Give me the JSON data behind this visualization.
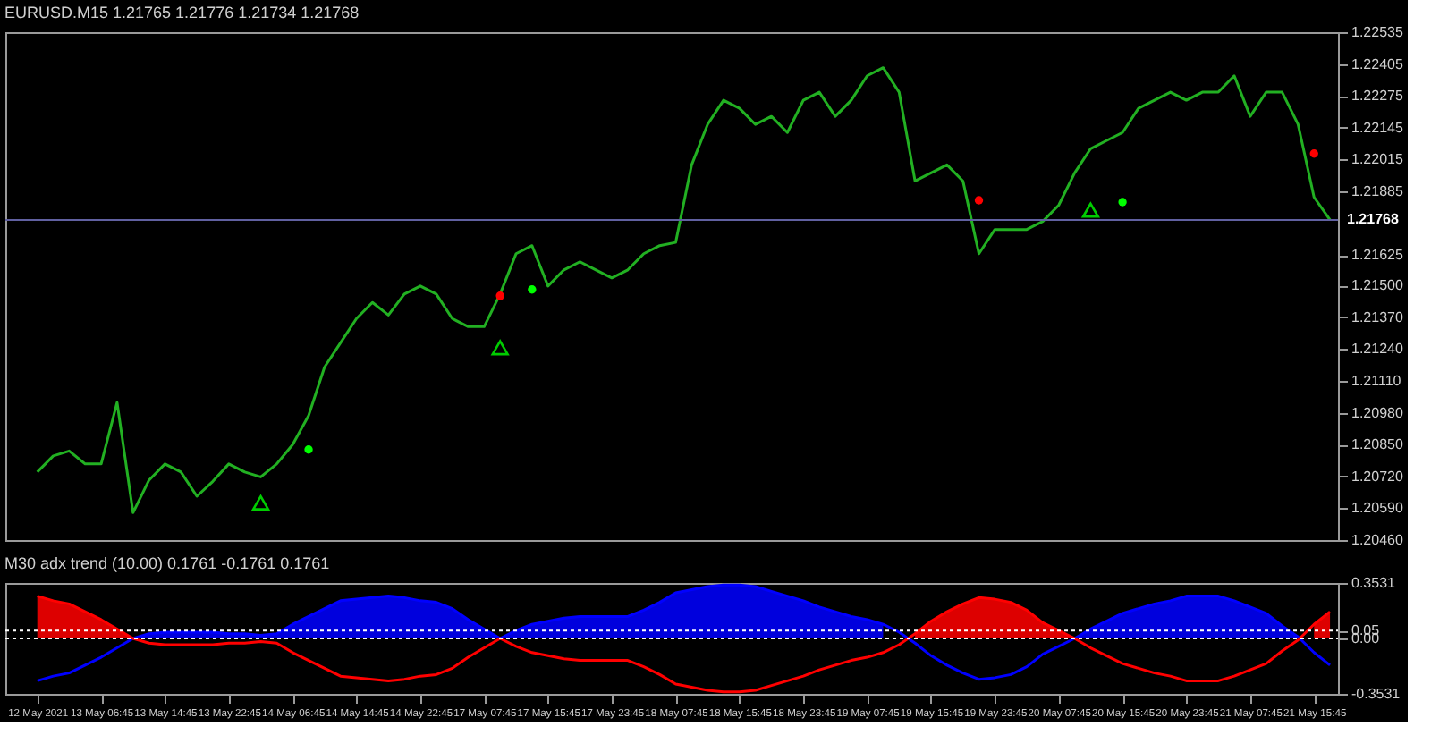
{
  "chart_data": [
    {
      "type": "line",
      "title": "EURUSD.M15  1.21765 1.21776 1.21734 1.21768",
      "categories": [
        null,
        null,
        null,
        null,
        null,
        null,
        null,
        null,
        null,
        null,
        null,
        null,
        null,
        null,
        null,
        null,
        null,
        null,
        null,
        null,
        null,
        null,
        null,
        null,
        null,
        null,
        null,
        null,
        null,
        null,
        null,
        null,
        null,
        null,
        null,
        null,
        null,
        null,
        null,
        null,
        null,
        null,
        null,
        null,
        null,
        null,
        null,
        null,
        null,
        null,
        null,
        null,
        null,
        null,
        null,
        null,
        null,
        null,
        null,
        null,
        null,
        null,
        null,
        null,
        null,
        null,
        null,
        null,
        null,
        null,
        null,
        null,
        null,
        null,
        null,
        null,
        null,
        null,
        null,
        null,
        null,
        null
      ],
      "series": [
        {
          "color": "#22b022",
          "values": [
            1.20738,
            1.20804,
            1.20824,
            1.20771,
            1.20771,
            1.21022,
            1.20572,
            1.20705,
            1.20771,
            1.20738,
            1.20639,
            1.207,
            1.20771,
            1.20738,
            1.20718,
            1.20771,
            1.2085,
            1.20969,
            1.21167,
            1.21266,
            1.21365,
            1.21431,
            1.21379,
            1.21465,
            1.21498,
            1.21465,
            1.21365,
            1.21332,
            1.21332,
            1.21465,
            1.2163,
            1.21663,
            1.21498,
            1.21564,
            1.21597,
            1.21564,
            1.21531,
            1.21564,
            1.2163,
            1.21663,
            1.21676,
            1.21993,
            1.22158,
            1.22257,
            1.22224,
            1.22158,
            1.22191,
            1.22125,
            1.22257,
            1.2229,
            1.22191,
            1.22257,
            1.22357,
            1.2239,
            1.2229,
            1.21927,
            1.2196,
            1.21993,
            1.21927,
            1.2163,
            1.21729,
            1.21729,
            1.21729,
            1.21762,
            1.21828,
            1.2196,
            1.22059,
            1.22092,
            1.22125,
            1.22224,
            1.22257,
            1.2229,
            1.22257,
            1.2229,
            1.2229,
            1.22357,
            1.22191,
            1.2229,
            1.2229,
            1.22158,
            1.21861,
            1.21768
          ]
        },
        {
          "type": "scatter",
          "marker": "circle",
          "color": "#00ff00",
          "values": [
            null,
            null,
            null,
            null,
            null,
            null,
            null,
            null,
            null,
            null,
            null,
            null,
            null,
            null,
            null,
            null,
            null,
            1.2083,
            null,
            null,
            null,
            null,
            null,
            null,
            null,
            null,
            null,
            null,
            null,
            null,
            null,
            1.21484,
            null,
            null,
            null,
            null,
            null,
            null,
            null,
            null,
            null,
            null,
            null,
            null,
            null,
            null,
            null,
            null,
            null,
            null,
            null,
            null,
            null,
            null,
            null,
            null,
            null,
            null,
            null,
            null,
            null,
            null,
            null,
            null,
            null,
            null,
            null,
            null,
            1.21841,
            null,
            null,
            null,
            null,
            null,
            null,
            null,
            null,
            null,
            null,
            null,
            null,
            null
          ]
        },
        {
          "type": "scatter",
          "marker": "circle",
          "color": "#ff0000",
          "values": [
            null,
            null,
            null,
            null,
            null,
            null,
            null,
            null,
            null,
            null,
            null,
            null,
            null,
            null,
            null,
            null,
            null,
            null,
            null,
            null,
            null,
            null,
            null,
            null,
            null,
            null,
            null,
            null,
            null,
            1.21458,
            null,
            null,
            null,
            null,
            null,
            null,
            null,
            null,
            null,
            null,
            null,
            null,
            null,
            null,
            null,
            null,
            null,
            null,
            null,
            null,
            null,
            null,
            null,
            null,
            null,
            null,
            null,
            null,
            null,
            1.21848,
            null,
            null,
            null,
            null,
            null,
            null,
            null,
            null,
            null,
            null,
            null,
            null,
            null,
            null,
            null,
            null,
            null,
            null,
            null,
            null,
            1.22039,
            null
          ]
        },
        {
          "type": "scatter",
          "marker": "triangle",
          "color": "#00cc00",
          "values": [
            null,
            null,
            null,
            null,
            null,
            null,
            null,
            null,
            null,
            null,
            null,
            null,
            null,
            null,
            1.20612,
            null,
            null,
            null,
            null,
            null,
            null,
            null,
            null,
            null,
            null,
            null,
            null,
            null,
            null,
            1.21246,
            null,
            null,
            null,
            null,
            null,
            null,
            null,
            null,
            null,
            null,
            null,
            null,
            null,
            null,
            null,
            null,
            null,
            null,
            null,
            null,
            null,
            null,
            null,
            null,
            null,
            null,
            null,
            null,
            null,
            null,
            null,
            null,
            null,
            null,
            null,
            null,
            1.21808,
            null,
            null,
            null,
            null,
            null,
            null,
            null,
            null,
            null,
            null,
            null,
            null,
            null,
            null,
            null
          ]
        }
      ],
      "ylim": [
        1.2046,
        1.22535
      ],
      "yticks": [
        1.22535,
        1.22405,
        1.22275,
        1.22145,
        1.22015,
        1.21885,
        1.21625,
        {
          "value": 1.215,
          "label": "1.21500"
        },
        {
          "value": 1.2137,
          "label": "1.21370"
        },
        {
          "value": 1.2124,
          "label": "1.21240"
        },
        {
          "value": 1.2111,
          "label": "1.21110"
        },
        {
          "value": 1.2098,
          "label": "1.20980"
        },
        {
          "value": 1.2085,
          "label": "1.20850"
        },
        {
          "value": 1.2072,
          "label": "1.20720"
        },
        {
          "value": 1.2059,
          "label": "1.20590"
        },
        {
          "value": 1.2046,
          "label": "1.20460"
        }
      ],
      "ref_lines": [
        {
          "axis": "y",
          "value": 1.21768,
          "label": "1.21768",
          "color": "#6060a0"
        }
      ],
      "tick_labels": "y",
      "grid": false
    },
    {
      "type": "area",
      "title": "M30 adx trend (10.00) 0.1761 -0.1761 0.1761",
      "categories": [
        "12 May 2021",
        null,
        null,
        null,
        "13 May 06:45",
        null,
        null,
        null,
        "13 May 14:45",
        null,
        null,
        null,
        "13 May 22:45",
        null,
        null,
        null,
        "14 May 06:45",
        null,
        null,
        null,
        "14 May 14:45",
        null,
        null,
        null,
        "14 May 22:45",
        null,
        null,
        null,
        "17 May 07:45",
        null,
        null,
        null,
        "17 May 15:45",
        null,
        null,
        null,
        "17 May 23:45",
        null,
        null,
        null,
        "18 May 07:45",
        null,
        null,
        null,
        "18 May 15:45",
        null,
        null,
        null,
        "18 May 23:45",
        null,
        null,
        null,
        "19 May 07:45",
        null,
        null,
        null,
        "19 May 15:45",
        null,
        null,
        null,
        "19 May 23:45",
        null,
        null,
        null,
        "20 May 07:45",
        null,
        null,
        null,
        "20 May 15:45",
        null,
        null,
        null,
        "20 May 23:45",
        null,
        null,
        null,
        "21 May 07:45",
        null,
        null,
        null,
        "21 May 15:45",
        null
      ],
      "series": [
        {
          "color": "#0000dd",
          "values": [
            null,
            null,
            null,
            null,
            null,
            null,
            0,
            0.03,
            0.04,
            0.04,
            0.04,
            0.04,
            0.03,
            0.03,
            0.02,
            0.03,
            0.09,
            0.14,
            0.19,
            0.24,
            0.25,
            0.26,
            0.27,
            0.26,
            0.24,
            0.23,
            0.19,
            0.12,
            0.06,
            0,
            0.05,
            0.09,
            0.11,
            0.13,
            0.14,
            0.14,
            0.14,
            0.14,
            0.18,
            0.23,
            0.29,
            0.31,
            0.33,
            0.34,
            0.34,
            0.33,
            0.3,
            0.27,
            0.24,
            0.2,
            0.17,
            0.14,
            0.12,
            0.09,
            null,
            null,
            null,
            null,
            null,
            null,
            null,
            null,
            null,
            null,
            null,
            0,
            0.06,
            0.11,
            0.16,
            0.19,
            0.22,
            0.24,
            0.27,
            0.27,
            0.27,
            0.24,
            0.2,
            0.16,
            0.08,
            0.01,
            null,
            null
          ]
        },
        {
          "color": "#dd0000",
          "values": [
            0.27,
            0.24,
            0.22,
            0.17,
            0.12,
            0.06,
            0,
            null,
            null,
            null,
            null,
            null,
            null,
            null,
            null,
            null,
            null,
            null,
            null,
            null,
            null,
            null,
            null,
            null,
            null,
            null,
            null,
            null,
            null,
            null,
            null,
            null,
            null,
            null,
            null,
            null,
            null,
            null,
            null,
            null,
            null,
            null,
            null,
            null,
            null,
            null,
            null,
            null,
            null,
            null,
            null,
            null,
            null,
            null,
            null,
            0.03,
            0.11,
            0.17,
            0.22,
            0.26,
            0.25,
            0.23,
            0.18,
            0.1,
            0.05,
            0,
            null,
            null,
            null,
            null,
            null,
            null,
            null,
            null,
            null,
            null,
            null,
            null,
            null,
            null,
            0.09,
            0.17
          ]
        },
        {
          "type": "line",
          "color": "#0000ff",
          "values": [
            -0.27,
            -0.24,
            -0.22,
            -0.17,
            -0.12,
            -0.06,
            0,
            0.03,
            0.04,
            0.04,
            0.04,
            0.04,
            0.03,
            0.03,
            0.02,
            0.03,
            0.09,
            0.14,
            0.19,
            0.24,
            0.25,
            0.26,
            0.27,
            0.26,
            0.24,
            0.23,
            0.19,
            0.12,
            0.06,
            0,
            0.05,
            0.09,
            0.11,
            0.13,
            0.14,
            0.14,
            0.14,
            0.14,
            0.18,
            0.23,
            0.29,
            0.31,
            0.33,
            0.34,
            0.34,
            0.33,
            0.3,
            0.27,
            0.24,
            0.2,
            0.17,
            0.14,
            0.12,
            0.09,
            0.04,
            -0.03,
            -0.11,
            -0.17,
            -0.22,
            -0.26,
            -0.25,
            -0.23,
            -0.18,
            -0.1,
            -0.05,
            0,
            0.06,
            0.11,
            0.16,
            0.19,
            0.22,
            0.24,
            0.27,
            0.27,
            0.27,
            0.24,
            0.2,
            0.16,
            0.08,
            0.01,
            -0.09,
            -0.17
          ]
        },
        {
          "type": "line",
          "color": "#ff0000",
          "values": [
            0.27,
            0.24,
            0.22,
            0.17,
            0.12,
            0.06,
            0,
            -0.03,
            -0.04,
            -0.04,
            -0.04,
            -0.04,
            -0.03,
            -0.03,
            -0.02,
            -0.03,
            -0.09,
            -0.14,
            -0.19,
            -0.24,
            -0.25,
            -0.26,
            -0.27,
            -0.26,
            -0.24,
            -0.23,
            -0.19,
            -0.12,
            -0.06,
            0,
            -0.05,
            -0.09,
            -0.11,
            -0.13,
            -0.14,
            -0.14,
            -0.14,
            -0.14,
            -0.18,
            -0.23,
            -0.29,
            -0.31,
            -0.33,
            -0.34,
            -0.34,
            -0.33,
            -0.3,
            -0.27,
            -0.24,
            -0.2,
            -0.17,
            -0.14,
            -0.12,
            -0.09,
            -0.04,
            0.03,
            0.11,
            0.17,
            0.22,
            0.26,
            0.25,
            0.23,
            0.18,
            0.1,
            0.05,
            0,
            -0.06,
            -0.11,
            -0.16,
            -0.19,
            -0.22,
            -0.24,
            -0.27,
            -0.27,
            -0.27,
            -0.24,
            -0.2,
            -0.16,
            -0.08,
            -0.01,
            0.09,
            0.17
          ]
        }
      ],
      "ylim": [
        -0.3531,
        0.3531
      ],
      "yticks": [
        0.3531,
        0.05,
        {
          "value": 0,
          "label": "0.00"
        },
        -0.3531
      ],
      "ref_lines": [
        {
          "axis": "y",
          "value": 0.05,
          "color": "#ffffff",
          "line_style": "dotted"
        },
        {
          "axis": "y",
          "value": 0,
          "color": "#ffffff",
          "line_style": "dotted"
        }
      ],
      "grid": false
    }
  ]
}
